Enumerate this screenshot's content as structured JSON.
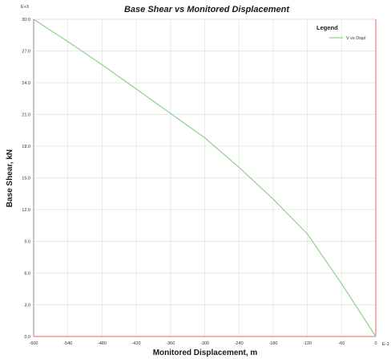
{
  "colors": {
    "series_line": "#8fcf8a",
    "grid": "#e2e2e2",
    "axis_left": "#8a8a8a",
    "axis_bottom": "#e86a6a",
    "axis_right": "#e86a6a",
    "plot_border": "#c8c8c8"
  },
  "chart_data": {
    "type": "line",
    "title": "Base Shear vs Monitored Displacement",
    "xlabel": "Monitored Displacement, m",
    "ylabel": "Base Shear, kN",
    "x_multiplier": "E-3",
    "y_multiplier": "E+3",
    "xlim": [
      -600,
      0
    ],
    "ylim": [
      0,
      30
    ],
    "x_ticks": [
      "-600",
      "-540",
      "-480",
      "-420",
      "-360",
      "-300",
      "-240",
      "-180",
      "-120",
      "-60",
      "0"
    ],
    "x_tick_values": [
      -600,
      -540,
      -480,
      -420,
      -360,
      -300,
      -240,
      -180,
      -120,
      -60,
      0
    ],
    "y_ticks": [
      "0.0",
      "3.0",
      "6.0",
      "9.0",
      "12.0",
      "15.0",
      "18.0",
      "21.0",
      "24.0",
      "27.0",
      "30.0"
    ],
    "y_tick_values": [
      0,
      3,
      6,
      9,
      12,
      15,
      18,
      21,
      24,
      27,
      30
    ],
    "grid": true,
    "legend": {
      "title": "Legend",
      "placement": "top-right"
    },
    "series": [
      {
        "name": "V vs Displ",
        "x": [
          0,
          -60,
          -120,
          -180,
          -240,
          -300,
          -360,
          -420,
          -480,
          -540,
          -600
        ],
        "y": [
          0,
          5.0,
          9.7,
          13.0,
          16.0,
          18.8,
          21.1,
          23.4,
          25.7,
          27.9,
          30.0
        ]
      }
    ]
  }
}
